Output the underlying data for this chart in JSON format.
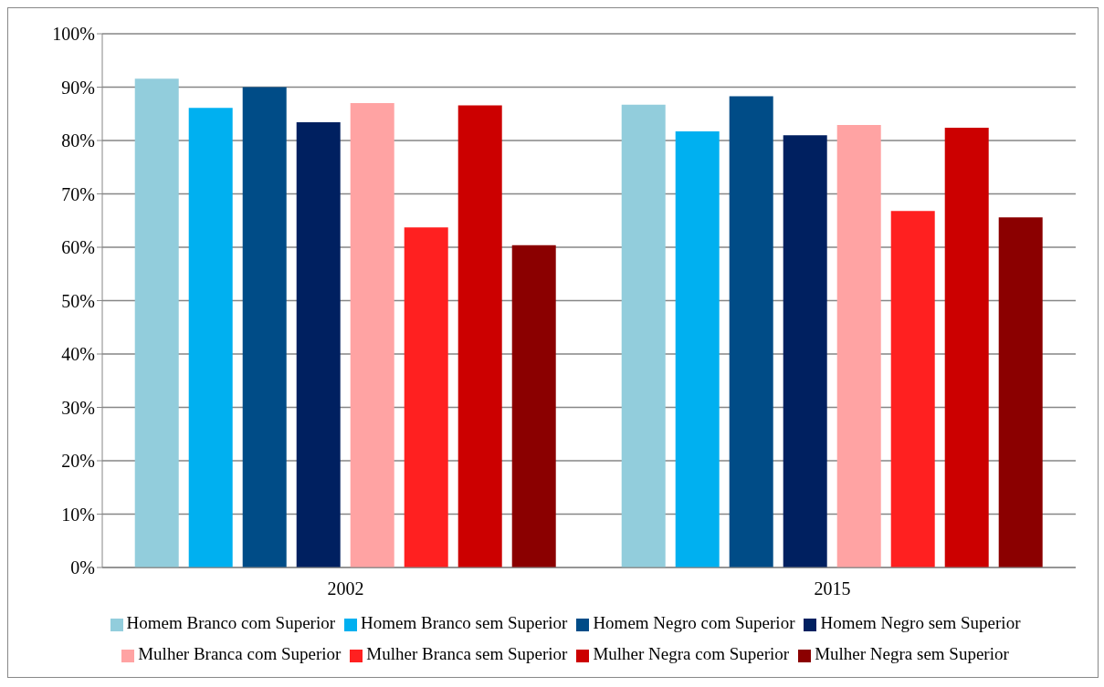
{
  "chart_data": {
    "type": "bar",
    "categories": [
      "2002",
      "2015"
    ],
    "series": [
      {
        "name": "Homem Branco com Superior",
        "color": "#92cddc",
        "values": [
          91.6,
          86.7
        ]
      },
      {
        "name": "Homem Branco sem Superior",
        "color": "#00b0f0",
        "values": [
          86.1,
          81.7
        ]
      },
      {
        "name": "Homem Negro com Superior",
        "color": "#004c87",
        "values": [
          90.0,
          88.3
        ]
      },
      {
        "name": "Homem Negro sem Superior",
        "color": "#002060",
        "values": [
          83.4,
          81.0
        ]
      },
      {
        "name": "Mulher Branca com Superior",
        "color": "#ffa3a3",
        "values": [
          87.0,
          82.9
        ]
      },
      {
        "name": "Mulher Branca sem Superior",
        "color": "#ff2020",
        "values": [
          63.7,
          66.8
        ]
      },
      {
        "name": "Mulher Negra com Superior",
        "color": "#cc0000",
        "values": [
          86.6,
          82.4
        ]
      },
      {
        "name": "Mulher Negra sem Superior",
        "color": "#8b0000",
        "values": [
          60.4,
          65.6
        ]
      }
    ],
    "ylim": [
      0,
      100
    ],
    "yticks": [
      {
        "value": 0,
        "label": "0%"
      },
      {
        "value": 10,
        "label": "10%"
      },
      {
        "value": 20,
        "label": "20%"
      },
      {
        "value": 30,
        "label": "30%"
      },
      {
        "value": 40,
        "label": "40%"
      },
      {
        "value": 50,
        "label": "50%"
      },
      {
        "value": 60,
        "label": "60%"
      },
      {
        "value": 70,
        "label": "70%"
      },
      {
        "value": 80,
        "label": "80%"
      },
      {
        "value": 90,
        "label": "90%"
      },
      {
        "value": 100,
        "label": "100%"
      }
    ],
    "grid": "y",
    "legend": "bottom"
  }
}
